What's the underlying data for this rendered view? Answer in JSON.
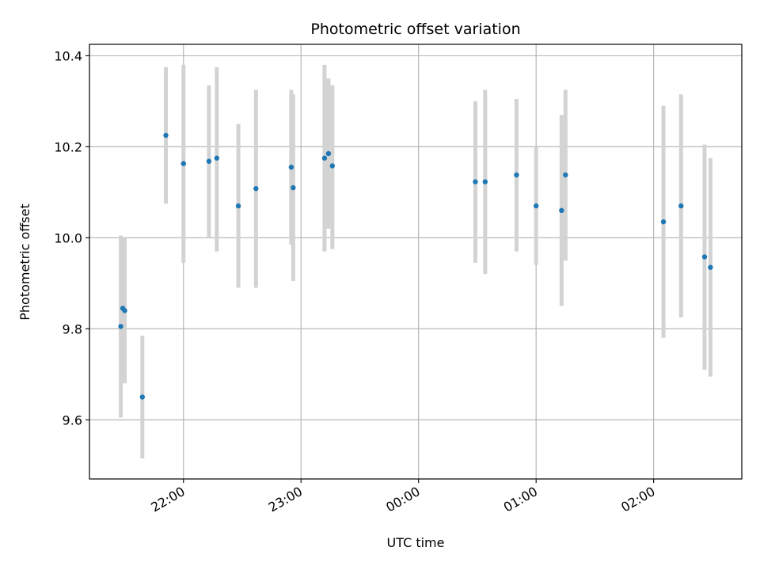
{
  "chart_data": {
    "type": "scatter",
    "title": "Photometric offset variation",
    "xlabel": "UTC time",
    "ylabel": "Photometric offset",
    "x_ticks": [
      "22:00",
      "23:00",
      "00:00",
      "01:00",
      "02:00"
    ],
    "y_ticks": [
      "9.6",
      "9.8",
      "10.0",
      "10.2",
      "10.4"
    ],
    "xlim": [
      "21:12",
      "02:45"
    ],
    "ylim": [
      9.47,
      10.425
    ],
    "grid": true,
    "colors": {
      "marker": "#1f77b4",
      "errorbar": "#d3d3d3",
      "grid": "#b0b0b0"
    },
    "points": [
      {
        "x": "21:28",
        "y": 9.805,
        "err_low": 9.605,
        "err_high": 10.005
      },
      {
        "x": "21:29",
        "y": 9.845,
        "err_low": 9.69,
        "err_high": 10.0
      },
      {
        "x": "21:30",
        "y": 9.84,
        "err_low": 9.68,
        "err_high": 10.0
      },
      {
        "x": "21:39",
        "y": 9.65,
        "err_low": 9.515,
        "err_high": 9.785
      },
      {
        "x": "21:51",
        "y": 10.225,
        "err_low": 10.075,
        "err_high": 10.375
      },
      {
        "x": "22:00",
        "y": 10.163,
        "err_low": 9.945,
        "err_high": 10.38
      },
      {
        "x": "22:13",
        "y": 10.168,
        "err_low": 10.0,
        "err_high": 10.335
      },
      {
        "x": "22:17",
        "y": 10.175,
        "err_low": 9.97,
        "err_high": 10.375
      },
      {
        "x": "22:28",
        "y": 10.07,
        "err_low": 9.89,
        "err_high": 10.25
      },
      {
        "x": "22:37",
        "y": 10.108,
        "err_low": 9.89,
        "err_high": 10.325
      },
      {
        "x": "22:55",
        "y": 10.155,
        "err_low": 9.985,
        "err_high": 10.325
      },
      {
        "x": "22:56",
        "y": 10.11,
        "err_low": 9.905,
        "err_high": 10.315
      },
      {
        "x": "23:12",
        "y": 10.175,
        "err_low": 9.97,
        "err_high": 10.38
      },
      {
        "x": "23:14",
        "y": 10.185,
        "err_low": 10.02,
        "err_high": 10.35
      },
      {
        "x": "23:16",
        "y": 10.158,
        "err_low": 9.975,
        "err_high": 10.335
      },
      {
        "x": "00:29",
        "y": 10.123,
        "err_low": 9.945,
        "err_high": 10.3
      },
      {
        "x": "00:34",
        "y": 10.123,
        "err_low": 9.92,
        "err_high": 10.325
      },
      {
        "x": "00:50",
        "y": 10.138,
        "err_low": 9.97,
        "err_high": 10.305
      },
      {
        "x": "01:00",
        "y": 10.07,
        "err_low": 9.94,
        "err_high": 10.2
      },
      {
        "x": "01:13",
        "y": 10.06,
        "err_low": 9.85,
        "err_high": 10.27
      },
      {
        "x": "01:15",
        "y": 10.138,
        "err_low": 9.95,
        "err_high": 10.325
      },
      {
        "x": "02:05",
        "y": 10.035,
        "err_low": 9.78,
        "err_high": 10.29
      },
      {
        "x": "02:14",
        "y": 10.07,
        "err_low": 9.825,
        "err_high": 10.315
      },
      {
        "x": "02:26",
        "y": 9.958,
        "err_low": 9.71,
        "err_high": 10.205
      },
      {
        "x": "02:29",
        "y": 9.935,
        "err_low": 9.695,
        "err_high": 10.175
      }
    ]
  }
}
